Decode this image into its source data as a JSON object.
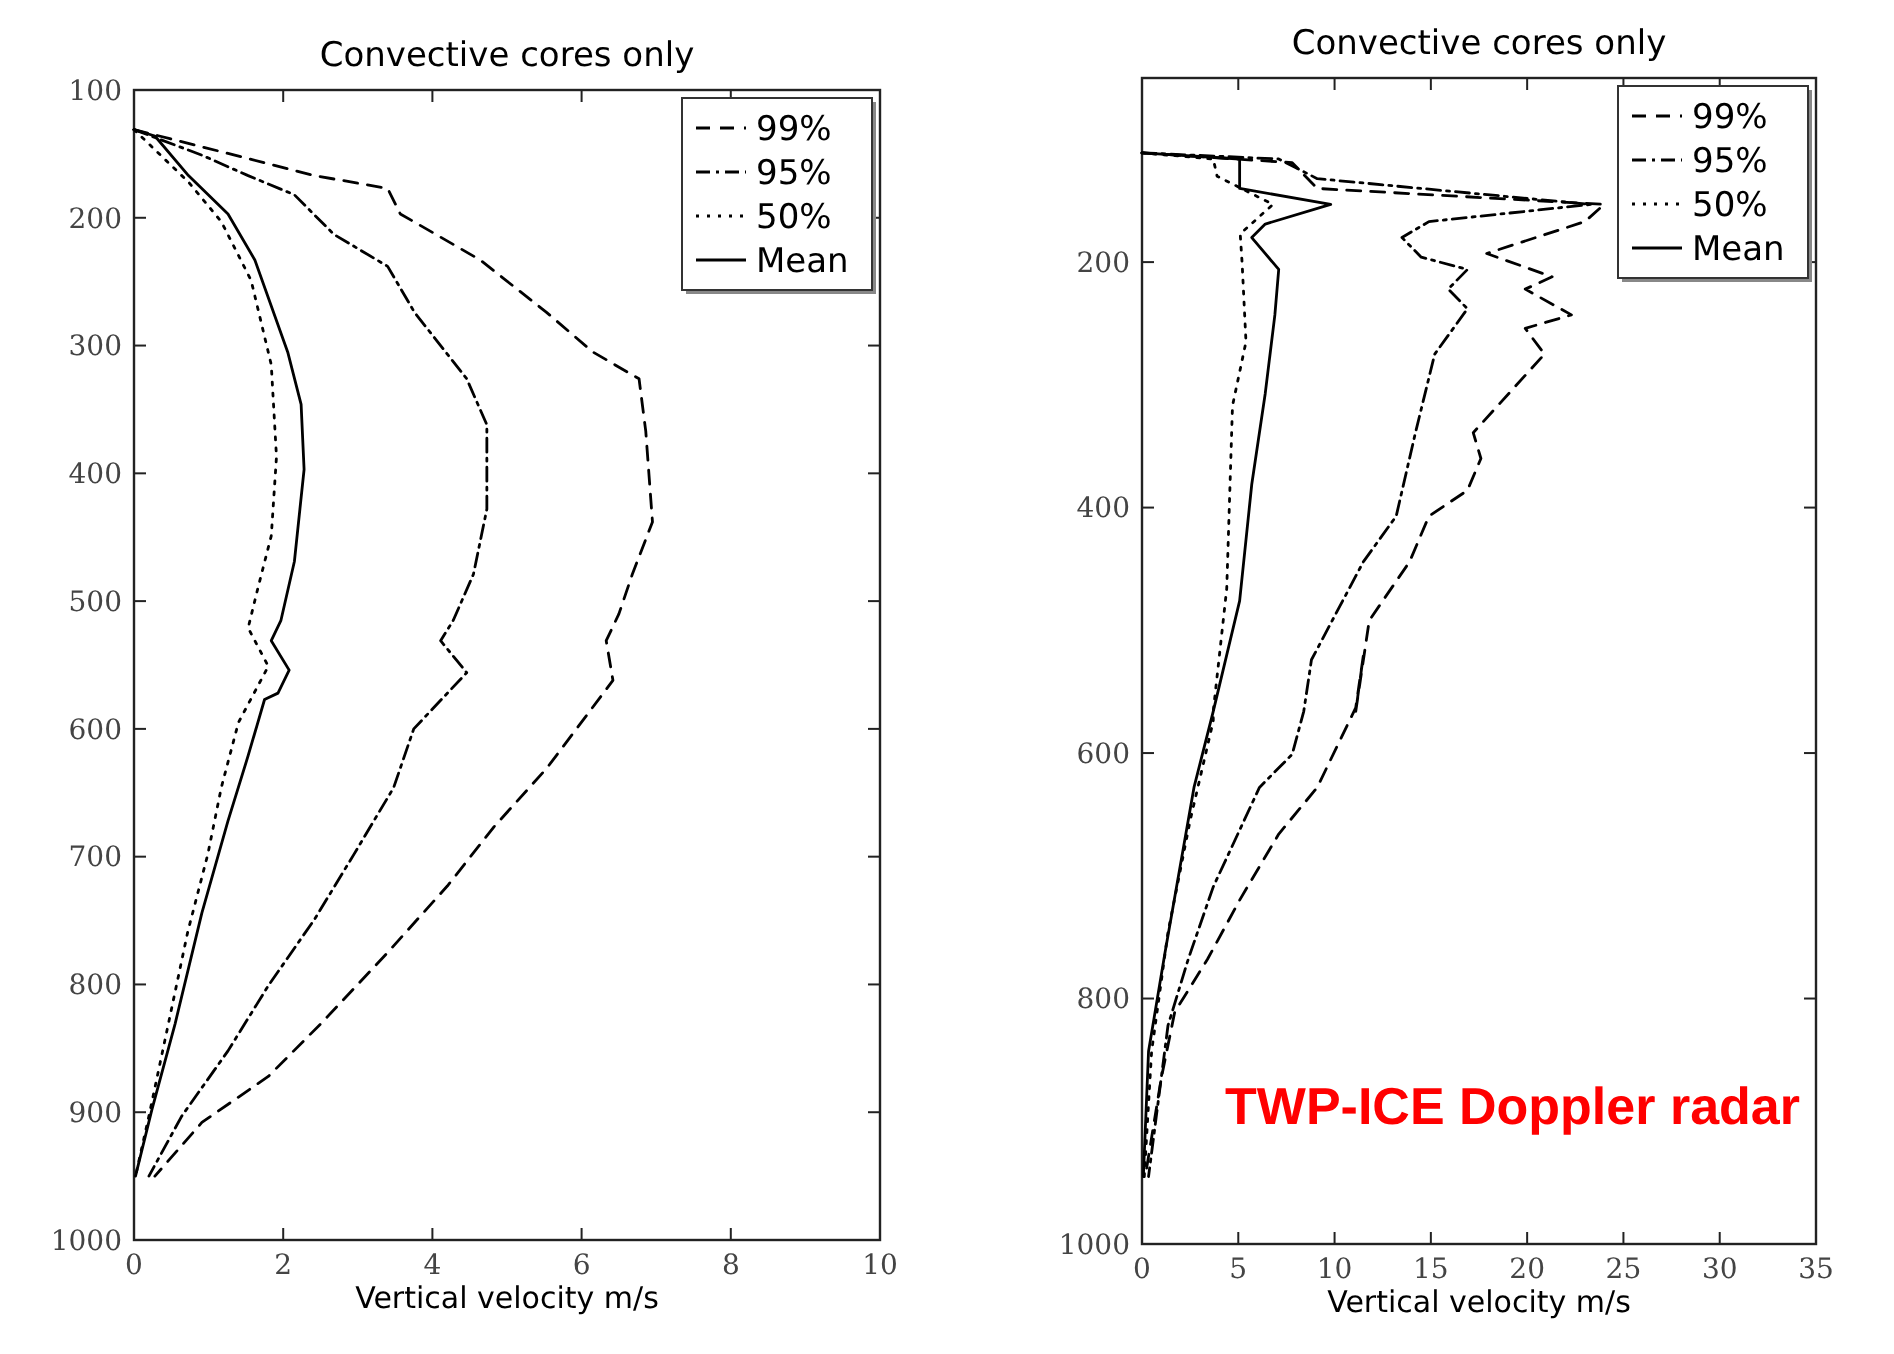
{
  "chart_data": [
    {
      "type": "line",
      "title": "Convective cores only",
      "xlabel": "Vertical velocity m/s",
      "xlim": [
        0,
        10
      ],
      "xticks": [
        0,
        2,
        4,
        6,
        8,
        10
      ],
      "ylim": [
        1000,
        100
      ],
      "yticks": [
        100,
        200,
        300,
        400,
        500,
        600,
        700,
        800,
        900,
        1000
      ],
      "legend": "top right",
      "series": [
        {
          "name": "99%",
          "color": "#000000",
          "line_style": "dashed",
          "x": [
            0,
            1.35,
            2.42,
            3.4,
            3.57,
            4.64,
            5.53,
            6.15,
            6.77,
            6.86,
            6.95,
            6.68,
            6.5,
            6.33,
            6.42,
            6.06,
            5.53,
            4.82,
            4.2,
            3.4,
            2.5,
            1.8,
            0.91,
            0.28
          ],
          "values": [
            131,
            151,
            167,
            177,
            197,
            233,
            274,
            305,
            326,
            367,
            438,
            479,
            510,
            531,
            562,
            590,
            631,
            677,
            723,
            775,
            831,
            872,
            908,
            950
          ]
        },
        {
          "name": "95%",
          "color": "#000000",
          "line_style": "dashdot",
          "x": [
            0,
            0.91,
            1.53,
            2.15,
            2.68,
            3.4,
            3.76,
            4.46,
            4.73,
            4.73,
            4.55,
            4.28,
            4.11,
            4.46,
            3.75,
            3.48,
            2.95,
            2.42,
            1.8,
            1.26,
            0.64,
            0.2
          ],
          "values": [
            131,
            151,
            167,
            182,
            213,
            238,
            274,
            326,
            362,
            428,
            479,
            515,
            531,
            556,
            600,
            646,
            698,
            749,
            801,
            852,
            903,
            950
          ]
        },
        {
          "name": "50%",
          "color": "#000000",
          "line_style": "dotted",
          "x": [
            0,
            0.73,
            1.17,
            1.57,
            1.84,
            1.91,
            1.84,
            1.66,
            1.53,
            1.8,
            1.4,
            1.17,
            0.99,
            0.72,
            0.46,
            0.2,
            0.02
          ],
          "values": [
            131,
            172,
            203,
            249,
            315,
            387,
            449,
            490,
            521,
            551,
            595,
            646,
            698,
            759,
            831,
            903,
            950
          ]
        },
        {
          "name": "Mean",
          "color": "#000000",
          "line_style": "solid",
          "x": [
            0,
            0.28,
            0.73,
            1.26,
            1.62,
            2.06,
            2.24,
            2.28,
            2.15,
            1.97,
            1.84,
            2.08,
            1.93,
            1.75,
            1.53,
            1.26,
            0.91,
            0.55,
            0.24,
            0.02
          ],
          "values": [
            131,
            136,
            167,
            197,
            233,
            305,
            346,
            397,
            469,
            515,
            531,
            554,
            572,
            577,
            621,
            672,
            744,
            831,
            898,
            950
          ]
        }
      ]
    },
    {
      "type": "line",
      "title": "Convective cores only",
      "xlabel": "Vertical velocity m/s",
      "xlim": [
        0,
        35
      ],
      "xticks": [
        0,
        5,
        10,
        15,
        20,
        25,
        30,
        35
      ],
      "ylim": [
        1000,
        50
      ],
      "yticks": [
        200,
        400,
        600,
        800,
        1000
      ],
      "legend": "top right",
      "annotations": [
        "TWP-ICE Doppler radar"
      ],
      "series": [
        {
          "name": "99%",
          "color": "#000000",
          "line_style": "dashed",
          "x": [
            0,
            7.8,
            9.1,
            24,
            23,
            17.9,
            21.3,
            19.9,
            22.3,
            19.9,
            20.9,
            17.2,
            17.6,
            16.9,
            14.9,
            13.9,
            11.8,
            11.1,
            11.5,
            11.1,
            9.1,
            7.1,
            5.1,
            3.4,
            1.7,
            1,
            0.17
          ],
          "values": [
            111,
            119,
            140,
            153,
            167,
            193,
            212,
            222,
            243,
            254,
            275,
            339,
            360,
            386,
            407,
            444,
            492,
            566,
            520,
            563,
            628,
            666,
            719,
            768,
            811,
            865,
            945
          ]
        },
        {
          "name": "95%",
          "color": "#000000",
          "line_style": "dashdot",
          "x": [
            0,
            7.1,
            9.1,
            23.3,
            14.9,
            13.5,
            14.5,
            16.9,
            15.9,
            16.9,
            15.2,
            14.2,
            13.2,
            11.5,
            8.8,
            8.4,
            7.8,
            6.1,
            3.7,
            2.4,
            1.35,
            0.34
          ],
          "values": [
            111,
            116,
            132,
            153,
            167,
            180,
            196,
            206,
            222,
            238,
            275,
            339,
            407,
            444,
            524,
            566,
            601,
            628,
            709,
            768,
            822,
            945
          ]
        },
        {
          "name": "50%",
          "color": "#000000",
          "line_style": "dotted",
          "x": [
            0,
            3.7,
            3.9,
            6.8,
            5.1,
            5.2,
            5.4,
            4.7,
            4.4,
            3.7,
            3.7,
            2.5,
            1.35,
            0.5,
            0.1
          ],
          "values": [
            111,
            116,
            130,
            153,
            177,
            201,
            265,
            317,
            466,
            566,
            574,
            655,
            746,
            843,
            950
          ]
        },
        {
          "name": "Mean",
          "color": "#000000",
          "line_style": "solid",
          "x": [
            0,
            5.07,
            5.07,
            9.8,
            6.4,
            5.7,
            7.1,
            6.9,
            6.4,
            5.7,
            5.07,
            3.7,
            2.7,
            1.2,
            0.34,
            0.07
          ],
          "values": [
            111,
            116,
            140,
            153,
            169,
            180,
            206,
            243,
            307,
            381,
            476,
            566,
            628,
            762,
            843,
            945
          ]
        }
      ]
    }
  ]
}
